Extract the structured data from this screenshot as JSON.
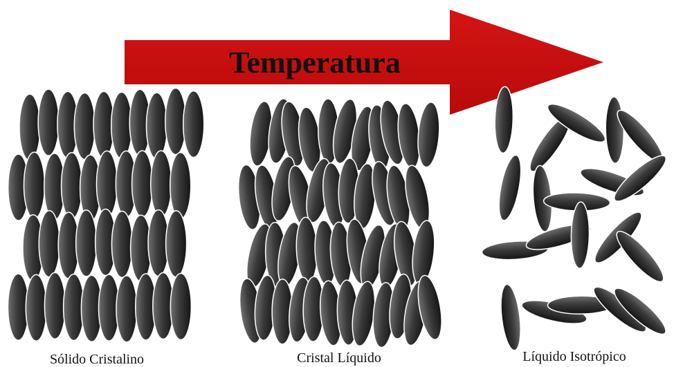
{
  "arrow": {
    "label": "Temperatura"
  },
  "phases": [
    {
      "label": "Sólido Cristalino"
    },
    {
      "label": "Cristal Líquido"
    },
    {
      "label": "Líquido Isotrópico"
    }
  ]
}
